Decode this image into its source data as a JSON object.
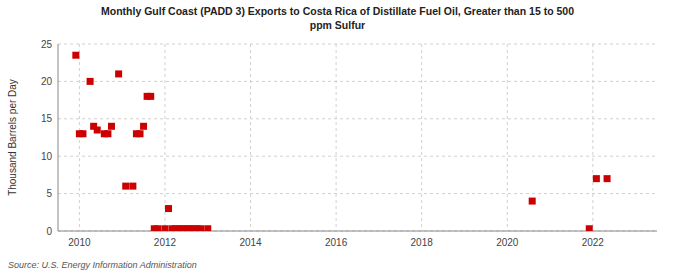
{
  "chart_data": {
    "type": "scatter",
    "title": "Monthly Gulf Coast (PADD 3) Exports to Costa Rica of Distillate Fuel Oil, Greater than 15 to 500\nppm Sulfur",
    "y_label": "Thousand Barrels per Day",
    "source": "Source: U.S. Energy Information Administration",
    "color": "#cc0000",
    "marker": "square",
    "grid": true,
    "xlim": [
      2009.5,
      2023.5
    ],
    "ylim": [
      0,
      25
    ],
    "xticks": [
      2010,
      2012,
      2014,
      2016,
      2018,
      2020,
      2022
    ],
    "yticks": [
      0,
      5,
      10,
      15,
      20,
      25
    ],
    "x": [
      2009.917,
      2010.0,
      2010.083,
      2010.25,
      2010.333,
      2010.417,
      2010.583,
      2010.667,
      2010.75,
      2010.917,
      2011.083,
      2011.25,
      2011.333,
      2011.417,
      2011.5,
      2011.583,
      2011.667,
      2011.75,
      2011.833,
      2012.0,
      2012.083,
      2012.167,
      2012.25,
      2012.333,
      2012.417,
      2012.5,
      2012.583,
      2012.667,
      2012.75,
      2012.833,
      2013.0,
      2020.583,
      2021.917,
      2022.083,
      2022.333
    ],
    "values": [
      23.5,
      13.0,
      13.0,
      20.0,
      14.0,
      13.5,
      13.0,
      13.0,
      14.0,
      21.0,
      6.0,
      6.0,
      13.0,
      13.0,
      14.0,
      18.0,
      18.0,
      0.3,
      0.3,
      0.3,
      3.0,
      0.3,
      0.3,
      0.3,
      0.3,
      0.3,
      0.3,
      0.3,
      0.3,
      0.3,
      0.3,
      4.0,
      0.3,
      7.0,
      7.0
    ]
  }
}
